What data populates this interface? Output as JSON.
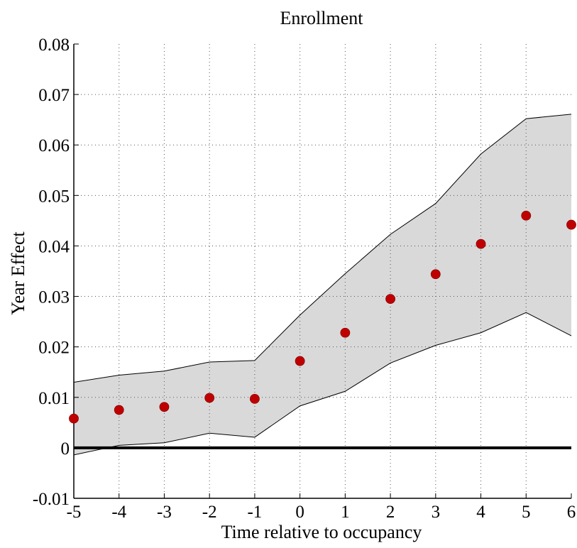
{
  "chart_data": {
    "type": "scatter",
    "title": "Enrollment",
    "xlabel": "Time relative to occupancy",
    "ylabel": "Year Effect",
    "xlim": [
      -5,
      6
    ],
    "ylim": [
      -0.01,
      0.08
    ],
    "x_ticks": [
      "-5",
      "-4",
      "-3",
      "-2",
      "-1",
      "0",
      "1",
      "2",
      "3",
      "4",
      "5",
      "6"
    ],
    "y_ticks": [
      "-0.01",
      "0",
      "0.01",
      "0.02",
      "0.03",
      "0.04",
      "0.05",
      "0.06",
      "0.07",
      "0.08"
    ],
    "grid": true,
    "x": [
      -5,
      -4,
      -3,
      -2,
      -1,
      0,
      1,
      2,
      3,
      4,
      5,
      6
    ],
    "series": [
      {
        "values": [
          0.0058,
          0.0075,
          0.0081,
          0.0099,
          0.0097,
          0.0172,
          0.0228,
          0.0295,
          0.0344,
          0.0404,
          0.046,
          0.0442
        ],
        "color": "#c00000"
      }
    ],
    "confidence_band": {
      "upper": [
        0.013,
        0.0144,
        0.0152,
        0.017,
        0.0173,
        0.0263,
        0.0345,
        0.0423,
        0.0484,
        0.0582,
        0.0652,
        0.0661
      ],
      "lower": [
        -0.0014,
        0.0005,
        0.001,
        0.0029,
        0.0021,
        0.0083,
        0.0112,
        0.0168,
        0.0203,
        0.0228,
        0.0268,
        0.0222
      ],
      "fill": "#d9d9d9",
      "stroke": "#000000"
    },
    "reference_line": {
      "y": 0,
      "color": "#000000"
    }
  }
}
